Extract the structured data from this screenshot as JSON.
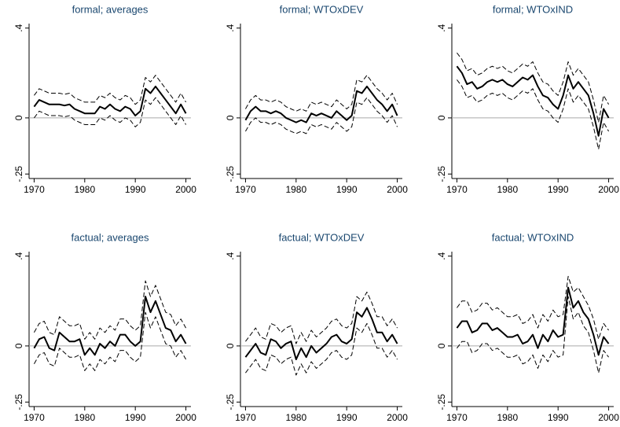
{
  "chart_data": [
    {
      "type": "line",
      "title": "formal; averages",
      "x": [
        1970,
        1971,
        1972,
        1973,
        1974,
        1975,
        1976,
        1977,
        1978,
        1979,
        1980,
        1981,
        1982,
        1983,
        1984,
        1985,
        1986,
        1987,
        1988,
        1989,
        1990,
        1991,
        1992,
        1993,
        1994,
        1995,
        1996,
        1997,
        1998,
        1999,
        2000
      ],
      "xlim": [
        1969,
        2001
      ],
      "xticks": [
        1970,
        1980,
        1990,
        2000
      ],
      "ylim": [
        -0.27,
        0.42
      ],
      "yticks": [
        {
          "value": 0.4,
          "label": ".4"
        },
        0,
        {
          "value": -0.25,
          "label": "-.25"
        }
      ],
      "refline": 0,
      "refline_color": "#aaaaaa",
      "series": [
        {
          "color": "#000000",
          "dashed": false,
          "values": [
            0.05,
            0.08,
            0.07,
            0.06,
            0.06,
            0.06,
            0.055,
            0.06,
            0.04,
            0.03,
            0.02,
            0.02,
            0.02,
            0.05,
            0.04,
            0.06,
            0.04,
            0.03,
            0.05,
            0.04,
            0.01,
            0.03,
            0.13,
            0.11,
            0.14,
            0.11,
            0.08,
            0.05,
            0.02,
            0.06,
            0.02
          ]
        },
        {
          "color": "#000000",
          "dashed": true,
          "values": [
            0.1,
            0.13,
            0.12,
            0.11,
            0.11,
            0.11,
            0.105,
            0.11,
            0.09,
            0.08,
            0.07,
            0.07,
            0.07,
            0.1,
            0.09,
            0.11,
            0.09,
            0.08,
            0.1,
            0.09,
            0.06,
            0.08,
            0.18,
            0.16,
            0.19,
            0.16,
            0.13,
            0.1,
            0.07,
            0.11,
            0.07
          ]
        },
        {
          "color": "#000000",
          "dashed": true,
          "values": [
            0,
            0.03,
            0.02,
            0.01,
            0.01,
            0.01,
            0.005,
            0.01,
            -0.01,
            -0.02,
            -0.03,
            -0.03,
            -0.03,
            0,
            -0.01,
            0.01,
            -0.01,
            -0.02,
            0,
            -0.01,
            -0.04,
            -0.02,
            0.08,
            0.06,
            0.09,
            0.06,
            0.03,
            0,
            -0.03,
            0.01,
            -0.03
          ]
        }
      ]
    },
    {
      "type": "line",
      "title": "formal; WTOxDEV",
      "x": [
        1970,
        1971,
        1972,
        1973,
        1974,
        1975,
        1976,
        1977,
        1978,
        1979,
        1980,
        1981,
        1982,
        1983,
        1984,
        1985,
        1986,
        1987,
        1988,
        1989,
        1990,
        1991,
        1992,
        1993,
        1994,
        1995,
        1996,
        1997,
        1998,
        1999,
        2000
      ],
      "xlim": [
        1969,
        2001
      ],
      "xticks": [
        1970,
        1980,
        1990,
        2000
      ],
      "ylim": [
        -0.27,
        0.42
      ],
      "yticks": [
        {
          "value": 0.4,
          "label": ".4"
        },
        0,
        {
          "value": -0.25,
          "label": "-.25"
        }
      ],
      "refline": 0,
      "refline_color": "#aaaaaa",
      "series": [
        {
          "color": "#000000",
          "dashed": false,
          "values": [
            -0.01,
            0.03,
            0.05,
            0.03,
            0.03,
            0.02,
            0.03,
            0.02,
            0,
            -0.01,
            -0.02,
            -0.01,
            -0.02,
            0.02,
            0.01,
            0.02,
            0.01,
            0,
            0.03,
            0.01,
            -0.01,
            0.01,
            0.12,
            0.11,
            0.14,
            0.11,
            0.08,
            0.06,
            0.03,
            0.06,
            0.01
          ]
        },
        {
          "color": "#000000",
          "dashed": true,
          "values": [
            0.04,
            0.08,
            0.1,
            0.08,
            0.08,
            0.07,
            0.08,
            0.07,
            0.05,
            0.04,
            0.03,
            0.04,
            0.03,
            0.07,
            0.06,
            0.07,
            0.06,
            0.05,
            0.08,
            0.06,
            0.04,
            0.06,
            0.17,
            0.16,
            0.19,
            0.16,
            0.13,
            0.11,
            0.08,
            0.11,
            0.06
          ]
        },
        {
          "color": "#000000",
          "dashed": true,
          "values": [
            -0.06,
            -0.02,
            0,
            -0.02,
            -0.02,
            -0.03,
            -0.02,
            -0.03,
            -0.05,
            -0.06,
            -0.07,
            -0.06,
            -0.07,
            -0.03,
            -0.04,
            -0.03,
            -0.04,
            -0.05,
            -0.02,
            -0.04,
            -0.06,
            -0.04,
            0.07,
            0.06,
            0.09,
            0.06,
            0.03,
            0.01,
            -0.02,
            0.01,
            -0.04
          ]
        }
      ]
    },
    {
      "type": "line",
      "title": "formal; WTOxIND",
      "x": [
        1970,
        1971,
        1972,
        1973,
        1974,
        1975,
        1976,
        1977,
        1978,
        1979,
        1980,
        1981,
        1982,
        1983,
        1984,
        1985,
        1986,
        1987,
        1988,
        1989,
        1990,
        1991,
        1992,
        1993,
        1994,
        1995,
        1996,
        1997,
        1998,
        1999,
        2000
      ],
      "xlim": [
        1969,
        2001
      ],
      "xticks": [
        1970,
        1980,
        1990,
        2000
      ],
      "ylim": [
        -0.27,
        0.42
      ],
      "yticks": [
        {
          "value": 0.4,
          "label": ".4"
        },
        0,
        {
          "value": -0.25,
          "label": "-.25"
        }
      ],
      "refline": 0,
      "refline_color": "#aaaaaa",
      "series": [
        {
          "color": "#000000",
          "dashed": false,
          "values": [
            0.23,
            0.2,
            0.15,
            0.16,
            0.13,
            0.14,
            0.16,
            0.17,
            0.16,
            0.17,
            0.15,
            0.14,
            0.16,
            0.18,
            0.17,
            0.19,
            0.14,
            0.1,
            0.09,
            0.06,
            0.04,
            0.1,
            0.19,
            0.13,
            0.16,
            0.13,
            0.1,
            0.02,
            -0.08,
            0.04,
            0
          ]
        },
        {
          "color": "#000000",
          "dashed": true,
          "values": [
            0.29,
            0.26,
            0.21,
            0.22,
            0.19,
            0.2,
            0.22,
            0.23,
            0.22,
            0.23,
            0.21,
            0.2,
            0.22,
            0.24,
            0.23,
            0.25,
            0.2,
            0.16,
            0.15,
            0.12,
            0.1,
            0.16,
            0.25,
            0.19,
            0.22,
            0.19,
            0.16,
            0.08,
            -0.02,
            0.1,
            0.06
          ]
        },
        {
          "color": "#000000",
          "dashed": true,
          "values": [
            0.17,
            0.14,
            0.09,
            0.1,
            0.07,
            0.08,
            0.1,
            0.11,
            0.1,
            0.11,
            0.09,
            0.08,
            0.1,
            0.12,
            0.11,
            0.13,
            0.08,
            0.04,
            0.03,
            0,
            -0.02,
            0.04,
            0.13,
            0.07,
            0.1,
            0.07,
            0.04,
            -0.04,
            -0.14,
            -0.02,
            -0.06
          ]
        }
      ]
    },
    {
      "type": "line",
      "title": "factual; averages",
      "x": [
        1970,
        1971,
        1972,
        1973,
        1974,
        1975,
        1976,
        1977,
        1978,
        1979,
        1980,
        1981,
        1982,
        1983,
        1984,
        1985,
        1986,
        1987,
        1988,
        1989,
        1990,
        1991,
        1992,
        1993,
        1994,
        1995,
        1996,
        1997,
        1998,
        1999,
        2000
      ],
      "xlim": [
        1969,
        2001
      ],
      "xticks": [
        1970,
        1980,
        1990,
        2000
      ],
      "ylim": [
        -0.27,
        0.42
      ],
      "yticks": [
        {
          "value": 0.4,
          "label": ".4"
        },
        0,
        {
          "value": -0.25,
          "label": "-.25"
        }
      ],
      "refline": 0,
      "refline_color": "#aaaaaa",
      "series": [
        {
          "color": "#000000",
          "dashed": false,
          "values": [
            -0.01,
            0.03,
            0.04,
            -0.01,
            -0.02,
            0.06,
            0.04,
            0.02,
            0.02,
            0.03,
            -0.04,
            -0.01,
            -0.04,
            0.01,
            -0.01,
            0.02,
            0,
            0.05,
            0.05,
            0.02,
            0,
            0.02,
            0.22,
            0.15,
            0.2,
            0.14,
            0.08,
            0.07,
            0.02,
            0.05,
            0.01
          ]
        },
        {
          "color": "#000000",
          "dashed": true,
          "values": [
            0.06,
            0.1,
            0.11,
            0.06,
            0.05,
            0.13,
            0.11,
            0.09,
            0.09,
            0.1,
            0.03,
            0.06,
            0.03,
            0.08,
            0.06,
            0.09,
            0.07,
            0.12,
            0.12,
            0.09,
            0.07,
            0.09,
            0.29,
            0.22,
            0.27,
            0.21,
            0.15,
            0.14,
            0.09,
            0.12,
            0.08
          ]
        },
        {
          "color": "#000000",
          "dashed": true,
          "values": [
            -0.08,
            -0.04,
            -0.03,
            -0.08,
            -0.09,
            -0.01,
            -0.03,
            -0.05,
            -0.05,
            -0.04,
            -0.11,
            -0.08,
            -0.11,
            -0.06,
            -0.08,
            -0.05,
            -0.07,
            -0.02,
            -0.02,
            -0.05,
            -0.07,
            -0.05,
            0.15,
            0.08,
            0.13,
            0.07,
            0.01,
            0,
            -0.05,
            -0.02,
            -0.06
          ]
        }
      ]
    },
    {
      "type": "line",
      "title": "factual; WTOxDEV",
      "x": [
        1970,
        1971,
        1972,
        1973,
        1974,
        1975,
        1976,
        1977,
        1978,
        1979,
        1980,
        1981,
        1982,
        1983,
        1984,
        1985,
        1986,
        1987,
        1988,
        1989,
        1990,
        1991,
        1992,
        1993,
        1994,
        1995,
        1996,
        1997,
        1998,
        1999,
        2000
      ],
      "xlim": [
        1969,
        2001
      ],
      "xticks": [
        1970,
        1980,
        1990,
        2000
      ],
      "ylim": [
        -0.27,
        0.42
      ],
      "yticks": [
        {
          "value": 0.4,
          "label": ".4"
        },
        0,
        {
          "value": -0.25,
          "label": "-.25"
        }
      ],
      "refline": 0,
      "refline_color": "#aaaaaa",
      "series": [
        {
          "color": "#000000",
          "dashed": false,
          "values": [
            -0.05,
            -0.02,
            0.01,
            -0.03,
            -0.04,
            0.03,
            0.02,
            -0.01,
            0.01,
            0.02,
            -0.06,
            -0.01,
            -0.05,
            0,
            -0.03,
            -0.01,
            0.01,
            0.04,
            0.05,
            0.02,
            0.01,
            0.03,
            0.15,
            0.13,
            0.17,
            0.12,
            0.06,
            0.06,
            0.02,
            0.05,
            0.01
          ]
        },
        {
          "color": "#000000",
          "dashed": true,
          "values": [
            0.02,
            0.05,
            0.08,
            0.04,
            0.03,
            0.1,
            0.09,
            0.06,
            0.08,
            0.09,
            0.01,
            0.06,
            0.02,
            0.07,
            0.04,
            0.06,
            0.08,
            0.11,
            0.12,
            0.09,
            0.08,
            0.1,
            0.22,
            0.2,
            0.24,
            0.19,
            0.13,
            0.13,
            0.09,
            0.12,
            0.08
          ]
        },
        {
          "color": "#000000",
          "dashed": true,
          "values": [
            -0.12,
            -0.09,
            -0.06,
            -0.1,
            -0.11,
            -0.04,
            -0.05,
            -0.08,
            -0.06,
            -0.05,
            -0.13,
            -0.08,
            -0.12,
            -0.07,
            -0.1,
            -0.08,
            -0.06,
            -0.03,
            -0.02,
            -0.05,
            -0.06,
            -0.04,
            0.08,
            0.06,
            0.1,
            0.05,
            -0.01,
            -0.01,
            -0.05,
            -0.02,
            -0.06
          ]
        }
      ]
    },
    {
      "type": "line",
      "title": "factual; WTOxIND",
      "x": [
        1970,
        1971,
        1972,
        1973,
        1974,
        1975,
        1976,
        1977,
        1978,
        1979,
        1980,
        1981,
        1982,
        1983,
        1984,
        1985,
        1986,
        1987,
        1988,
        1989,
        1990,
        1991,
        1992,
        1993,
        1994,
        1995,
        1996,
        1997,
        1998,
        1999,
        2000
      ],
      "xlim": [
        1969,
        2001
      ],
      "xticks": [
        1970,
        1980,
        1990,
        2000
      ],
      "ylim": [
        -0.27,
        0.42
      ],
      "yticks": [
        {
          "value": 0.4,
          "label": ".4"
        },
        0,
        {
          "value": -0.25,
          "label": "-.25"
        }
      ],
      "refline": 0,
      "refline_color": "#aaaaaa",
      "series": [
        {
          "color": "#000000",
          "dashed": false,
          "values": [
            0.08,
            0.11,
            0.11,
            0.06,
            0.07,
            0.1,
            0.1,
            0.07,
            0.08,
            0.06,
            0.04,
            0.04,
            0.05,
            0.01,
            0.02,
            0.05,
            -0.01,
            0.05,
            0.02,
            0.07,
            0.04,
            0.05,
            0.26,
            0.17,
            0.2,
            0.15,
            0.12,
            0.05,
            -0.04,
            0.04,
            0.01
          ]
        },
        {
          "color": "#000000",
          "dashed": true,
          "values": [
            0.17,
            0.2,
            0.2,
            0.15,
            0.16,
            0.19,
            0.19,
            0.16,
            0.17,
            0.15,
            0.13,
            0.13,
            0.14,
            0.1,
            0.11,
            0.14,
            0.08,
            0.14,
            0.11,
            0.16,
            0.13,
            0.14,
            0.31,
            0.24,
            0.26,
            0.22,
            0.18,
            0.12,
            0.03,
            0.1,
            0.07
          ]
        },
        {
          "color": "#000000",
          "dashed": true,
          "values": [
            -0.01,
            0.02,
            0.02,
            -0.03,
            -0.02,
            0.01,
            0.01,
            -0.02,
            -0.01,
            -0.03,
            -0.05,
            -0.05,
            -0.04,
            -0.08,
            -0.07,
            -0.04,
            -0.1,
            -0.04,
            -0.07,
            -0.02,
            -0.05,
            -0.04,
            0.22,
            0.12,
            0.15,
            0.09,
            0.06,
            -0.02,
            -0.12,
            -0.02,
            -0.05
          ]
        }
      ]
    }
  ]
}
